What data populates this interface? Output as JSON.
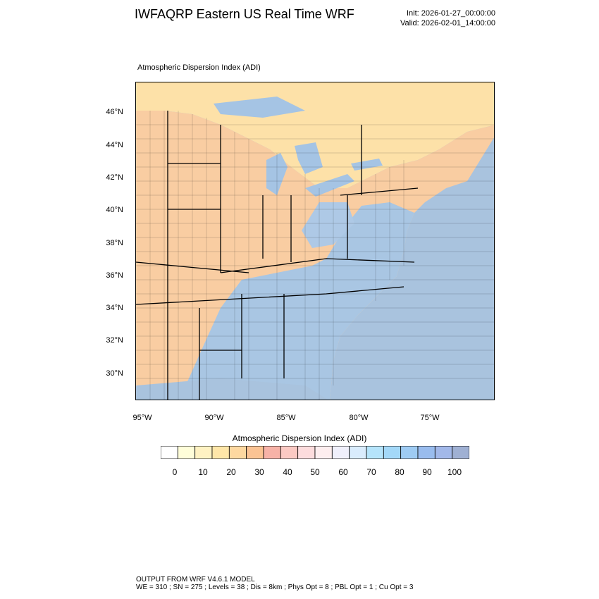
{
  "title": "IWFAQRP Eastern US Real Time WRF",
  "init": "Init: 2026-01-27_00:00:00",
  "valid": "Valid: 2026-02-01_14:00:00",
  "field_label": "Atmospheric Dispersion Index   (ADI)",
  "lat_labels": [
    "46°N",
    "44°N",
    "42°N",
    "40°N",
    "38°N",
    "36°N",
    "34°N",
    "32°N",
    "30°N"
  ],
  "lon_labels": [
    "95°W",
    "90°W",
    "85°W",
    "80°W",
    "75°W"
  ],
  "colorbar": {
    "title": "Atmospheric Dispersion Index  (ADI)",
    "tick_labels": [
      "0",
      "10",
      "20",
      "30",
      "40",
      "50",
      "60",
      "70",
      "80",
      "90",
      "100"
    ],
    "colors": [
      "#ffffff",
      "#fffed9",
      "#fff2c2",
      "#ffe6a8",
      "#fed8a0",
      "#fbc393",
      "#f7b2a7",
      "#fbc9c3",
      "#fddcdd",
      "#feeeef",
      "#f0f0fc",
      "#d9ecfd",
      "#b5e4fb",
      "#a3d8f8",
      "#9ecbf3",
      "#99bcee",
      "#a2b8e9",
      "#9fb0d3"
    ]
  },
  "colors": {
    "ocean": "#a9c3de",
    "land_north": "#fddba6",
    "land_west": "#f9c7a2",
    "southeast": "#a9c3de",
    "lakes": "#a5c4e4"
  },
  "footer": {
    "line1": "OUTPUT FROM WRF V4.6.1 MODEL",
    "line2": "WE = 310 ; SN = 275 ; Levels = 38 ; Dis = 8km ; Phys Opt = 8 ; PBL Opt = 1 ; Cu Opt = 3"
  }
}
